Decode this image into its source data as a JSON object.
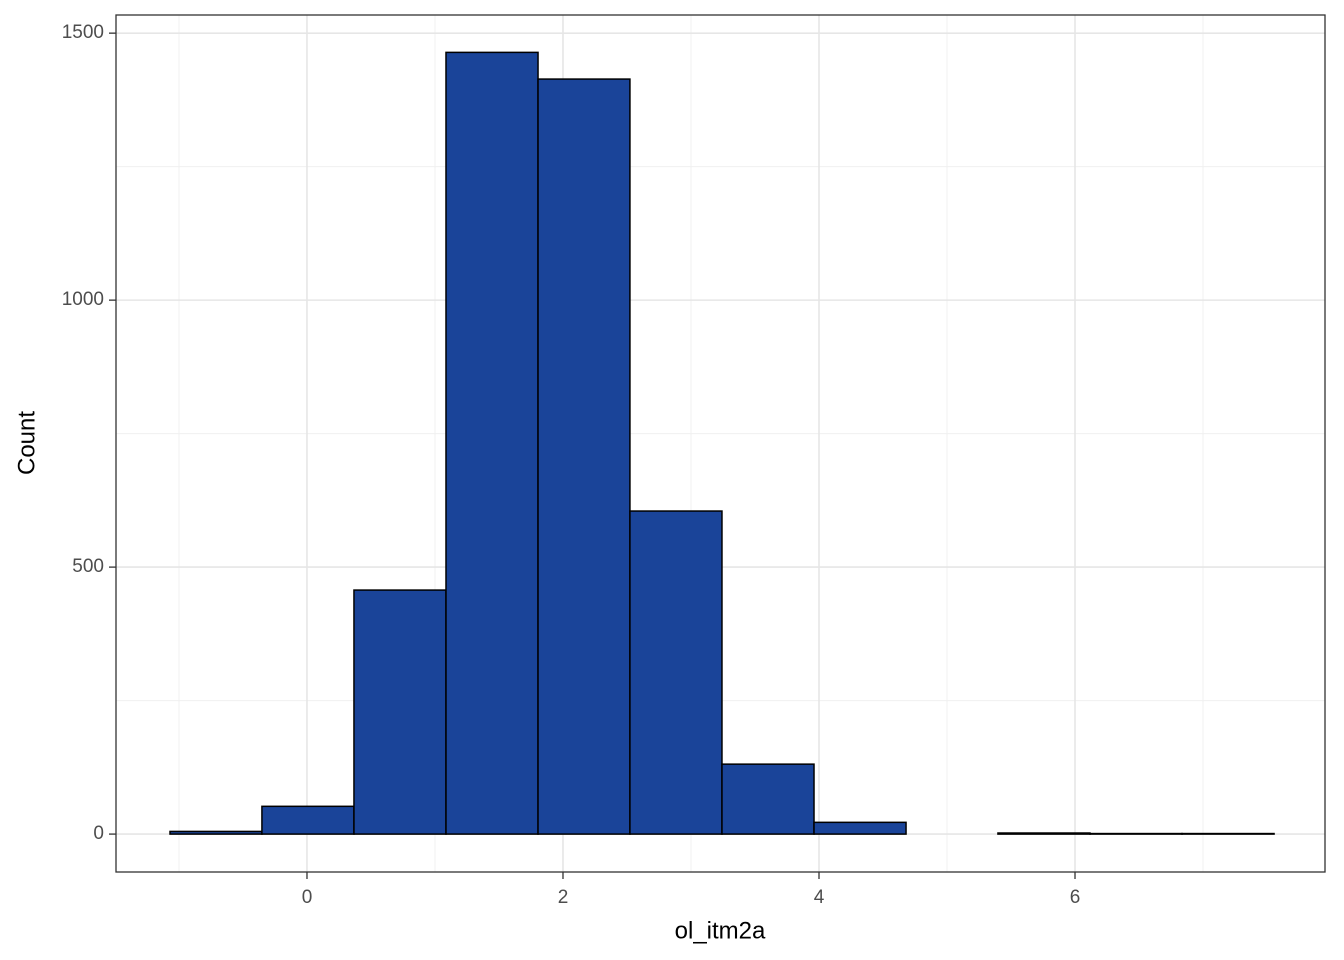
{
  "chart_data": {
    "type": "histogram",
    "x_label": "ol_itm2a",
    "y_label": "Count",
    "bins": [
      -1.07,
      -0.352,
      0.367,
      1.086,
      1.805,
      2.523,
      3.242,
      3.961,
      4.68,
      5.398,
      6.117,
      6.836,
      7.555
    ],
    "values": [
      5,
      52,
      457,
      1464,
      1414,
      605,
      131,
      22,
      0,
      2,
      1,
      1
    ],
    "color": "#1a4499",
    "xlim": [
      -1.492,
      7.953
    ],
    "ylim": [
      -71,
      1534
    ],
    "xticks": [
      0,
      2,
      4,
      6
    ],
    "yticks": [
      0,
      500,
      1000,
      1500
    ],
    "x_minor_grid": [
      -1,
      1,
      3,
      5,
      7
    ],
    "y_minor_grid": [
      250,
      750,
      1250
    ],
    "grid": true
  }
}
